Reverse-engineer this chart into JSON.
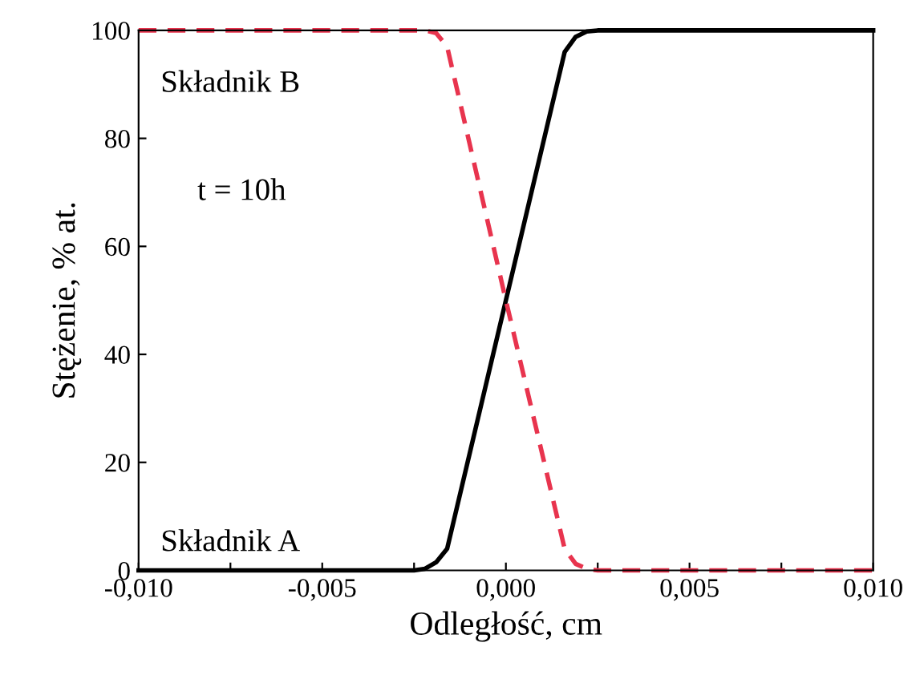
{
  "chart_data": {
    "type": "line",
    "xlabel": "Odległość, cm",
    "ylabel": "Stężenie, % at.",
    "annotations": [
      "t = 10h"
    ],
    "series": [
      {
        "name": "Składnik A",
        "color": "#000000",
        "line_style": "solid",
        "x": [
          -0.01,
          -0.0025,
          -0.0022,
          -0.0019,
          -0.0016,
          0,
          0.0016,
          0.0019,
          0.0022,
          0.0025,
          0.01
        ],
        "values": [
          0,
          0,
          0.3,
          1.5,
          4,
          50,
          96,
          98.8,
          99.8,
          100,
          100
        ]
      },
      {
        "name": "Składnik B",
        "color": "#e8344e",
        "line_style": "dashed",
        "x": [
          -0.01,
          -0.0022,
          -0.0019,
          -0.0016,
          0,
          0.0016,
          0.0019,
          0.0022,
          0.0025,
          0.01
        ],
        "values": [
          100,
          100,
          99.5,
          97,
          50,
          4,
          1.2,
          0.3,
          0,
          0
        ]
      }
    ],
    "xlim": [
      -0.01,
      0.01
    ],
    "xticks": [
      {
        "value": -0.01,
        "label": "-0,010"
      },
      {
        "value": -0.0075,
        "label": null
      },
      {
        "value": -0.005,
        "label": "-0,005"
      },
      {
        "value": -0.0025,
        "label": null
      },
      {
        "value": 0,
        "label": "0,000"
      },
      {
        "value": 0.0025,
        "label": null
      },
      {
        "value": 0.005,
        "label": "0,005"
      },
      {
        "value": 0.0075,
        "label": null
      },
      {
        "value": 0.01,
        "label": "0,010"
      }
    ],
    "ylim": [
      0,
      100
    ],
    "yticks": [
      0,
      20,
      40,
      60,
      80,
      100
    ],
    "grid": false,
    "legend": false,
    "marker": "none"
  }
}
